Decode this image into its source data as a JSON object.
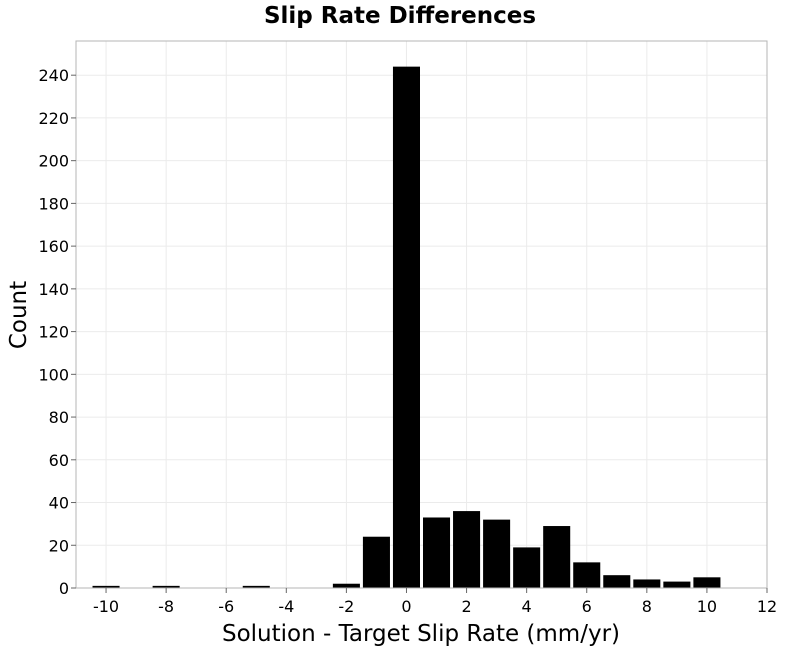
{
  "chart_data": {
    "type": "bar",
    "title": "Slip Rate Differences",
    "xlabel": "Solution - Target Slip Rate (mm/yr)",
    "ylabel": "Count",
    "xlim": [
      -11,
      12
    ],
    "ylim": [
      0,
      256
    ],
    "xticks": [
      -10,
      -8,
      -6,
      -4,
      -2,
      0,
      2,
      4,
      6,
      8,
      10,
      12
    ],
    "yticks": [
      0,
      20,
      40,
      60,
      80,
      100,
      120,
      140,
      160,
      180,
      200,
      220,
      240
    ],
    "bin_width": 1,
    "grid": true,
    "bar_color": "#000000",
    "bins": [
      {
        "x": -10,
        "count": 1
      },
      {
        "x": -8,
        "count": 1
      },
      {
        "x": -5,
        "count": 1
      },
      {
        "x": -2,
        "count": 2
      },
      {
        "x": -1,
        "count": 24
      },
      {
        "x": 0,
        "count": 244
      },
      {
        "x": 1,
        "count": 33
      },
      {
        "x": 2,
        "count": 36
      },
      {
        "x": 3,
        "count": 32
      },
      {
        "x": 4,
        "count": 19
      },
      {
        "x": 5,
        "count": 29
      },
      {
        "x": 6,
        "count": 12
      },
      {
        "x": 7,
        "count": 6
      },
      {
        "x": 8,
        "count": 4
      },
      {
        "x": 9,
        "count": 3
      },
      {
        "x": 10,
        "count": 5
      }
    ]
  }
}
